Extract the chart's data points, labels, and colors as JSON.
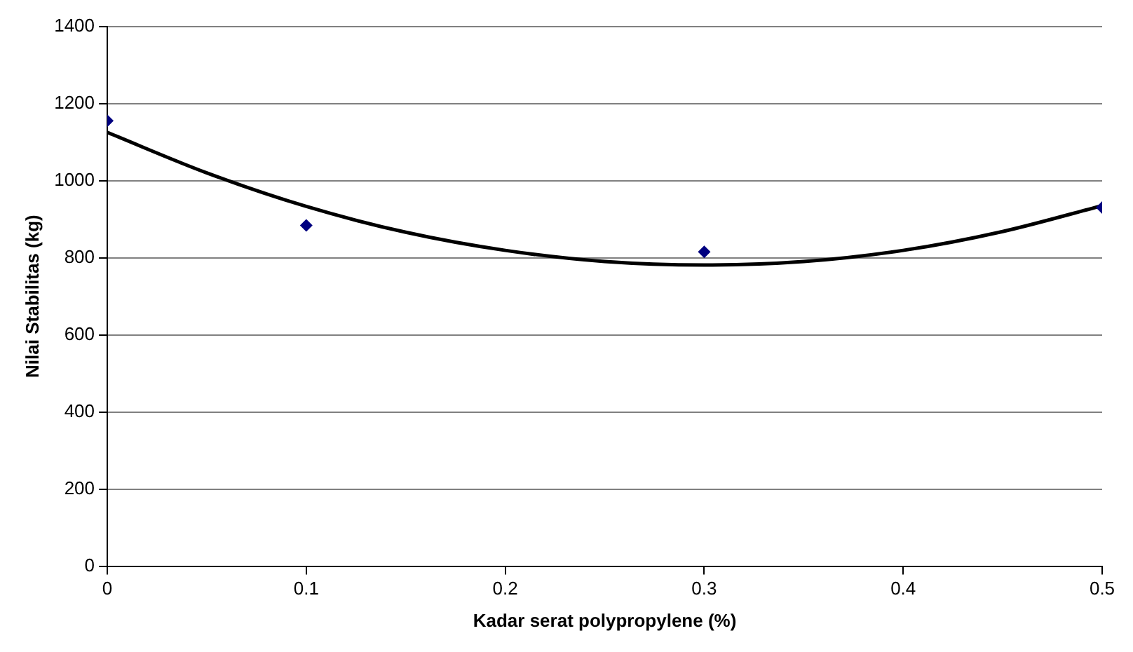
{
  "chart_data": {
    "type": "scatter",
    "xlabel": "Kadar serat polypropylene (%)",
    "ylabel": "Nilai Stabilitas (kg)",
    "x": [
      0,
      0.1,
      0.3,
      0.5
    ],
    "series": [
      {
        "values": [
          1155,
          884,
          815,
          930
        ],
        "color": "#000080"
      },
      {
        "type": "line",
        "x": [
          0,
          0.05,
          0.1,
          0.15,
          0.2,
          0.25,
          0.3,
          0.35,
          0.4,
          0.45,
          0.5
        ],
        "values": [
          1125,
          1020,
          933,
          866,
          819,
          790,
          781,
          790,
          819,
          868,
          935
        ],
        "color": "#000000",
        "marker": "none"
      }
    ],
    "xlim": [
      0,
      0.5
    ],
    "xticks": [
      0,
      0.1,
      0.2,
      0.3,
      0.4,
      0.5
    ],
    "ylim": [
      0,
      1400
    ],
    "yticks": [
      0,
      200,
      400,
      600,
      800,
      1000,
      1200,
      1400
    ],
    "grid": "y",
    "legend": false,
    "marker": "diamond"
  }
}
